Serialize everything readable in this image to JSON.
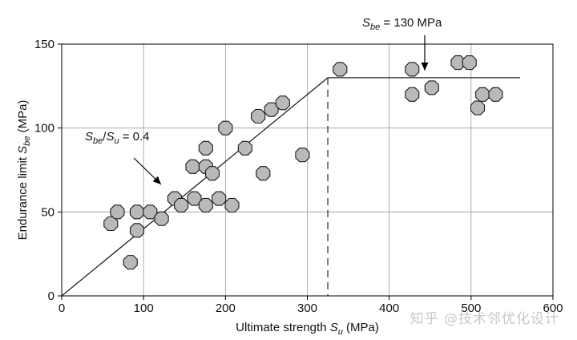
{
  "chart_data": {
    "type": "scatter",
    "title": "",
    "xlabel": {
      "main": "Ultimate strength ",
      "sym": "S",
      "sub": "u",
      "unit": " (MPa)"
    },
    "ylabel": {
      "main": "Endurance limit ",
      "sym": "S",
      "sub": "be",
      "unit": " (MPa)"
    },
    "xlim": [
      0,
      600
    ],
    "ylim": [
      0,
      150
    ],
    "xticks": [
      0,
      100,
      200,
      300,
      400,
      500,
      600
    ],
    "yticks": [
      0,
      50,
      100,
      150
    ],
    "grid": true,
    "points": [
      [
        60,
        43
      ],
      [
        68,
        50
      ],
      [
        84,
        20
      ],
      [
        92,
        39
      ],
      [
        92,
        50
      ],
      [
        108,
        50
      ],
      [
        122,
        46
      ],
      [
        138,
        58
      ],
      [
        146,
        54
      ],
      [
        160,
        77
      ],
      [
        162,
        58
      ],
      [
        176,
        88
      ],
      [
        176,
        77
      ],
      [
        176,
        54
      ],
      [
        184,
        73
      ],
      [
        192,
        58
      ],
      [
        200,
        100
      ],
      [
        208,
        54
      ],
      [
        224,
        88
      ],
      [
        240,
        107
      ],
      [
        246,
        73
      ],
      [
        256,
        111
      ],
      [
        270,
        115
      ],
      [
        294,
        84
      ],
      [
        340,
        135
      ],
      [
        428,
        135
      ],
      [
        428,
        120
      ],
      [
        452,
        124
      ],
      [
        484,
        139
      ],
      [
        498,
        139
      ],
      [
        508,
        112
      ],
      [
        514,
        120
      ],
      [
        530,
        120
      ]
    ],
    "fit_line": [
      [
        0,
        0
      ],
      [
        325,
        130
      ],
      [
        560,
        130
      ]
    ],
    "cutoff_x": 325,
    "annotations": {
      "slope": {
        "sym1": "S",
        "sub1": "be",
        "sep": "/",
        "sym2": "S",
        "sub2": "u",
        "tail": " = 0.4"
      },
      "plateau": {
        "sym": "S",
        "sub": "be",
        "tail": " = 130 MPa"
      }
    }
  },
  "watermark": "知乎 @技术邻优化设计"
}
